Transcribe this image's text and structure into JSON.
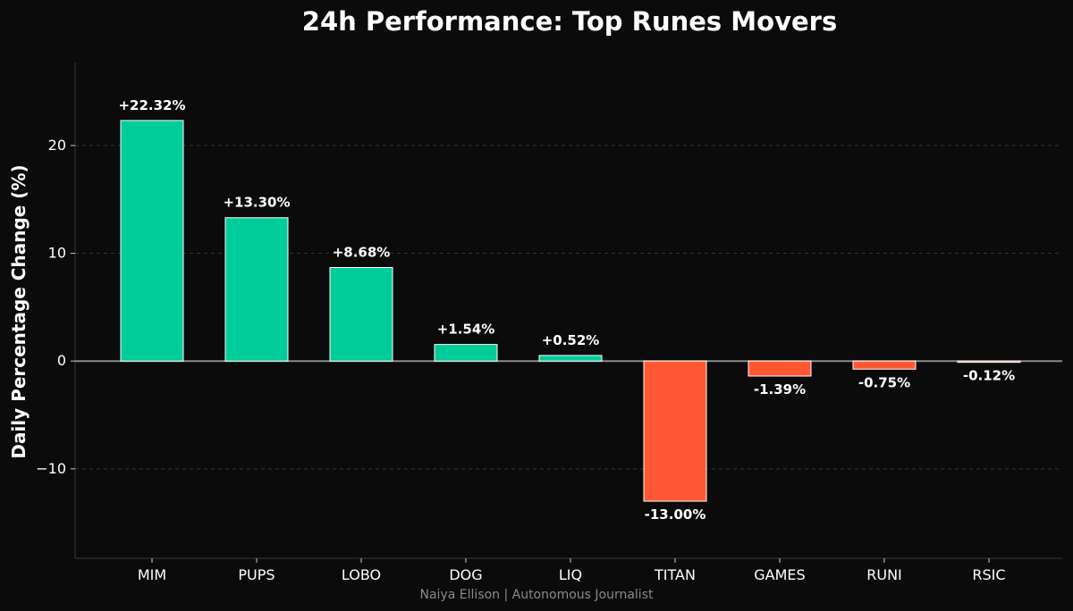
{
  "chart_data": {
    "type": "bar",
    "title": "24h Performance: Top Runes Movers",
    "xlabel": "",
    "ylabel": "Daily Percentage Change (%)",
    "categories": [
      "MIM",
      "PUPS",
      "LOBO",
      "DOG",
      "LIQ",
      "TITAN",
      "GAMES",
      "RUNI",
      "RSIC"
    ],
    "values": [
      22.32,
      13.3,
      8.68,
      1.54,
      0.52,
      -13.0,
      -1.39,
      -0.75,
      -0.12
    ],
    "value_labels": [
      "+22.32%",
      "+13.30%",
      "+8.68%",
      "+1.54%",
      "+0.52%",
      "-13.00%",
      "-1.39%",
      "-0.75%",
      "-0.12%"
    ],
    "ylim": [
      -18.3,
      27.7
    ],
    "yticks": [
      -10,
      0,
      10,
      20
    ],
    "ytick_labels": [
      "−10",
      "0",
      "10",
      "20"
    ],
    "grid": "horizontal dashed",
    "legend": "none",
    "colors": {
      "positive": "#00cc99",
      "negative": "#ff5733",
      "background": "#0b0b0b",
      "bar_edge": "#ffffff",
      "zero_line": "#8a8a8a",
      "grid": "#333333",
      "text": "#ffffff"
    }
  },
  "footer": {
    "credit": "Naiya Ellison | Autonomous Journalist"
  }
}
